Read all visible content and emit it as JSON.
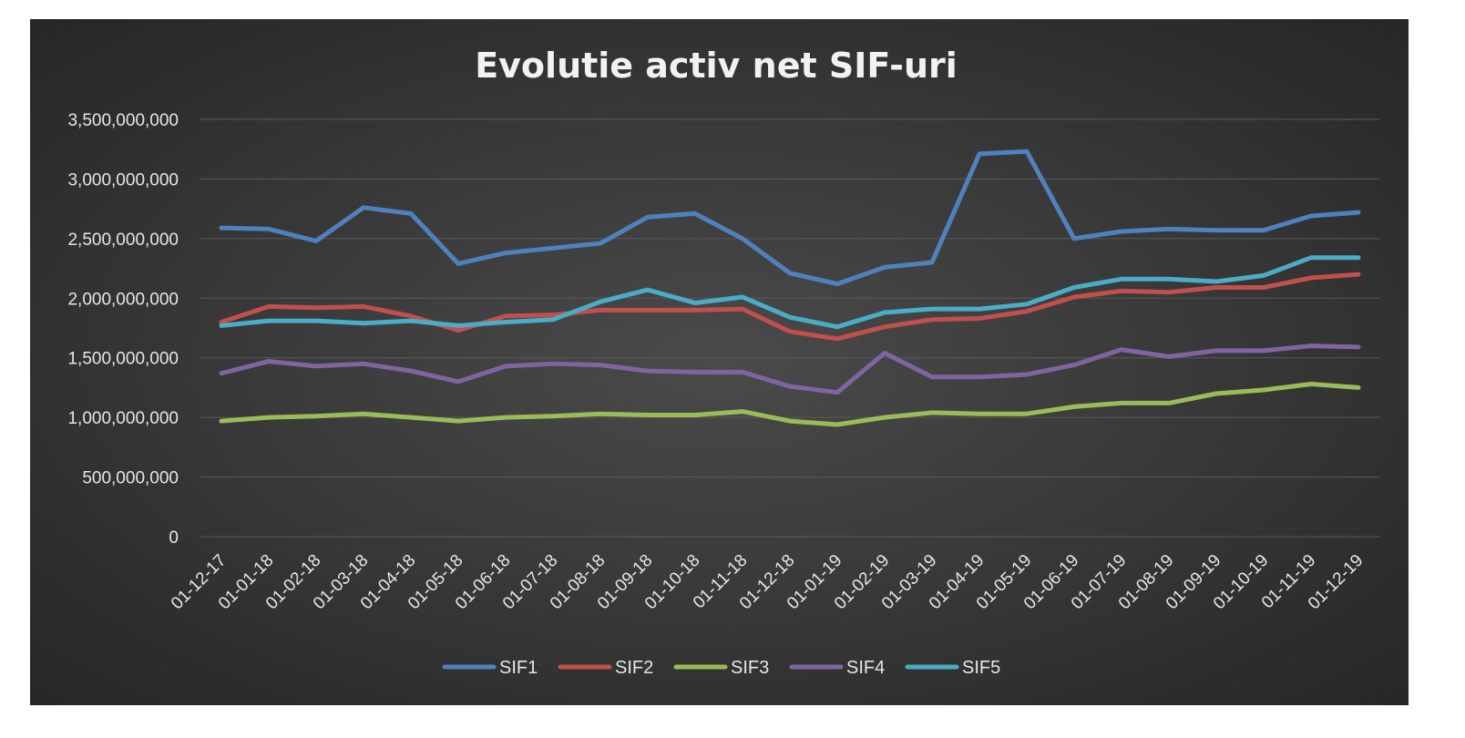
{
  "chart_data": {
    "type": "line",
    "title": "Evolutie activ net SIF-uri",
    "xlabel": "",
    "ylabel": "",
    "ylim": [
      0,
      3500000000
    ],
    "yticks": [
      0,
      500000000,
      1000000000,
      1500000000,
      2000000000,
      2500000000,
      3000000000,
      3500000000
    ],
    "ytick_labels": [
      "0",
      "500,000,000",
      "1,000,000,000",
      "1,500,000,000",
      "2,000,000,000",
      "2,500,000,000",
      "3,000,000,000",
      "3,500,000,000"
    ],
    "grid": true,
    "legend_position": "bottom",
    "categories": [
      "01-12-17",
      "01-01-18",
      "01-02-18",
      "01-03-18",
      "01-04-18",
      "01-05-18",
      "01-06-18",
      "01-07-18",
      "01-08-18",
      "01-09-18",
      "01-10-18",
      "01-11-18",
      "01-12-18",
      "01-01-19",
      "01-02-19",
      "01-03-19",
      "01-04-19",
      "01-05-19",
      "01-06-19",
      "01-07-19",
      "01-08-19",
      "01-09-19",
      "01-10-19",
      "01-11-19",
      "01-12-19"
    ],
    "series": [
      {
        "name": "SIF1",
        "color": "#4f81bd",
        "values": [
          2590000000,
          2580000000,
          2480000000,
          2760000000,
          2710000000,
          2290000000,
          2380000000,
          2420000000,
          2460000000,
          2680000000,
          2710000000,
          2500000000,
          2210000000,
          2120000000,
          2260000000,
          2300000000,
          3210000000,
          3230000000,
          2500000000,
          2560000000,
          2580000000,
          2570000000,
          2570000000,
          2690000000,
          2720000000
        ]
      },
      {
        "name": "SIF2",
        "color": "#c0504d",
        "values": [
          1800000000,
          1930000000,
          1920000000,
          1930000000,
          1850000000,
          1730000000,
          1850000000,
          1860000000,
          1900000000,
          1900000000,
          1900000000,
          1910000000,
          1720000000,
          1660000000,
          1760000000,
          1820000000,
          1830000000,
          1890000000,
          2010000000,
          2060000000,
          2050000000,
          2090000000,
          2090000000,
          2170000000,
          2200000000
        ]
      },
      {
        "name": "SIF3",
        "color": "#9bbb59",
        "values": [
          970000000,
          1000000000,
          1010000000,
          1030000000,
          1000000000,
          970000000,
          1000000000,
          1010000000,
          1030000000,
          1020000000,
          1020000000,
          1050000000,
          970000000,
          940000000,
          1000000000,
          1040000000,
          1030000000,
          1030000000,
          1090000000,
          1120000000,
          1120000000,
          1200000000,
          1230000000,
          1280000000,
          1250000000
        ]
      },
      {
        "name": "SIF4",
        "color": "#8064a2",
        "values": [
          1370000000,
          1470000000,
          1430000000,
          1450000000,
          1390000000,
          1300000000,
          1430000000,
          1450000000,
          1440000000,
          1390000000,
          1380000000,
          1380000000,
          1260000000,
          1210000000,
          1540000000,
          1340000000,
          1340000000,
          1360000000,
          1440000000,
          1570000000,
          1510000000,
          1560000000,
          1560000000,
          1600000000,
          1590000000
        ]
      },
      {
        "name": "SIF5",
        "color": "#4bacc6",
        "values": [
          1770000000,
          1810000000,
          1810000000,
          1790000000,
          1810000000,
          1770000000,
          1800000000,
          1820000000,
          1970000000,
          2070000000,
          1960000000,
          2010000000,
          1840000000,
          1760000000,
          1880000000,
          1910000000,
          1910000000,
          1950000000,
          2090000000,
          2160000000,
          2160000000,
          2140000000,
          2190000000,
          2340000000,
          2340000000
        ]
      }
    ]
  }
}
